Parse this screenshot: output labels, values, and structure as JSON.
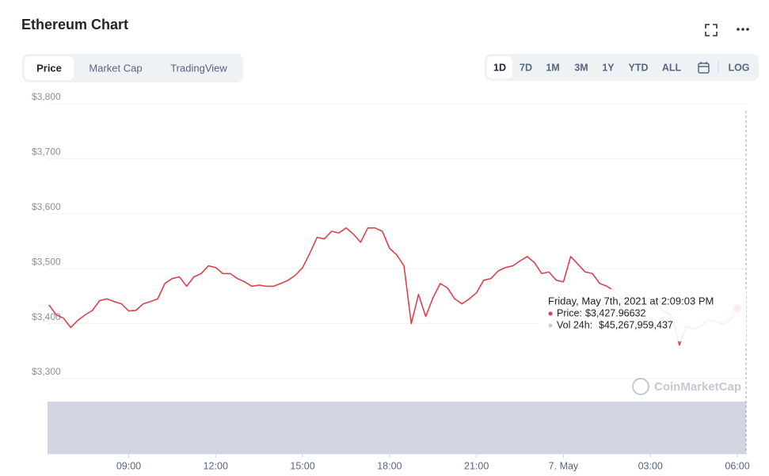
{
  "header": {
    "title": "Ethereum Chart"
  },
  "tabs": [
    "Price",
    "Market Cap",
    "TradingView"
  ],
  "ranges": [
    "1D",
    "7D",
    "1M",
    "3M",
    "1Y",
    "YTD",
    "ALL"
  ],
  "log_button": "LOG",
  "watermark": "CoinMarketCap",
  "tooltip": {
    "date": "Friday, May 7th, 2021 at 2:09:03 PM",
    "price_label": "Price:",
    "price": "$3,427.96632",
    "vol_label": "Vol 24h:",
    "vol": "$45,267,959,437"
  },
  "chart_data": {
    "type": "line",
    "color": "#d9434e",
    "grid": true,
    "x": [
      6.25,
      6.5,
      6.75,
      7,
      7.25,
      7.5,
      7.75,
      8,
      8.25,
      8.5,
      8.75,
      9,
      9.25,
      9.5,
      9.75,
      10,
      10.25,
      10.5,
      10.75,
      11,
      11.25,
      11.5,
      11.75,
      12,
      12.25,
      12.5,
      12.75,
      13,
      13.25,
      13.5,
      13.75,
      14,
      14.25,
      14.5,
      14.75,
      15,
      15.25,
      15.5,
      15.75,
      16,
      16.25,
      16.5,
      16.75,
      17,
      17.25,
      17.5,
      17.75,
      18,
      18.25,
      18.5,
      18.75,
      19,
      19.25,
      19.5,
      19.75,
      20,
      20.25,
      20.5,
      20.75,
      21,
      21.25,
      21.5,
      21.75,
      22,
      22.25,
      22.5,
      22.75,
      23,
      23.25,
      23.5,
      23.75,
      24,
      24.25,
      24.5,
      24.75,
      25,
      25.25,
      25.5,
      25.75,
      26,
      26.25,
      26.5,
      26.75,
      27,
      27.25,
      27.5,
      27.75,
      28,
      28.25,
      28.5,
      28.75,
      29,
      29.25,
      29.5,
      29.75,
      30
    ],
    "values": [
      3434,
      3416,
      3410,
      3393,
      3406,
      3416,
      3424,
      3442,
      3445,
      3440,
      3436,
      3423,
      3424,
      3436,
      3440,
      3445,
      3473,
      3482,
      3485,
      3468,
      3485,
      3491,
      3505,
      3502,
      3491,
      3491,
      3482,
      3476,
      3468,
      3470,
      3468,
      3468,
      3473,
      3479,
      3488,
      3502,
      3528,
      3557,
      3554,
      3568,
      3565,
      3574,
      3563,
      3548,
      3574,
      3574,
      3568,
      3537,
      3525,
      3505,
      3400,
      3453,
      3413,
      3447,
      3473,
      3465,
      3445,
      3436,
      3445,
      3456,
      3479,
      3482,
      3496,
      3502,
      3505,
      3514,
      3522,
      3511,
      3491,
      3494,
      3479,
      3476,
      3522,
      3508,
      3494,
      3491,
      3473,
      3468,
      3459,
      3445,
      3453,
      3439,
      3442,
      3427,
      3433,
      3422,
      3413,
      3361,
      3396,
      3390,
      3396,
      3407,
      3404,
      3399,
      3407,
      3428
    ],
    "xlim": [
      6.2,
      30.3
    ],
    "xticks": [
      {
        "value": 9,
        "label": "09:00"
      },
      {
        "value": 12,
        "label": "12:00"
      },
      {
        "value": 15,
        "label": "15:00"
      },
      {
        "value": 18,
        "label": "18:00"
      },
      {
        "value": 21,
        "label": "21:00"
      },
      {
        "value": 24,
        "label": "7. May"
      },
      {
        "value": 27,
        "label": "03:00"
      },
      {
        "value": 30,
        "label": "06:00"
      }
    ],
    "ylim": [
      3300,
      3800
    ],
    "yticks": [
      {
        "value": 3300,
        "label": "$3,300"
      },
      {
        "value": 3400,
        "label": "$3,400"
      },
      {
        "value": 3500,
        "label": "$3,500"
      },
      {
        "value": 3600,
        "label": "$3,600"
      },
      {
        "value": 3700,
        "label": "$3,700"
      },
      {
        "value": 3800,
        "label": "$3,800"
      }
    ]
  }
}
